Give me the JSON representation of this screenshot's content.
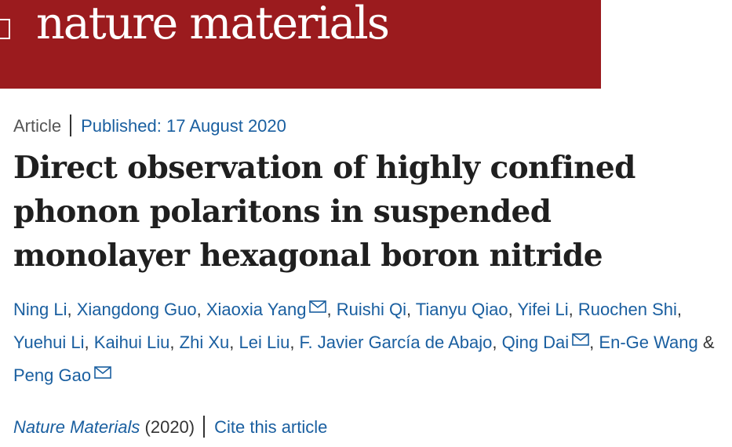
{
  "header": {
    "logo_text": "nature materials",
    "bg_color": "#9b1b1e"
  },
  "meta": {
    "article_type": "Article",
    "published": "Published: 17 August 2020"
  },
  "title": "Direct observation of highly confined phonon polaritons in suspended monolayer hexagonal boron nitride",
  "authors": {
    "a1": "Ning Li",
    "a2": "Xiangdong Guo",
    "a3": "Xiaoxia Yang",
    "a4": "Ruishi Qi",
    "a5": "Tianyu Qiao",
    "a6": "Yifei Li",
    "a7": "Ruochen Shi",
    "a8": "Yuehui Li",
    "a9": "Kaihui Liu",
    "a10": "Zhi Xu",
    "a11": "Lei Liu",
    "a12": "F. Javier García de Abajo",
    "a13": "Qing Dai",
    "a14": "En-Ge Wang",
    "a15": "Peng Gao",
    "and_text": "&",
    "contact_icon": "mail-icon"
  },
  "citation": {
    "journal": "Nature Materials",
    "year": "(2020)",
    "cite_link": "Cite this article"
  },
  "colors": {
    "link": "#1a5fa0",
    "title": "#1f1f1f"
  }
}
